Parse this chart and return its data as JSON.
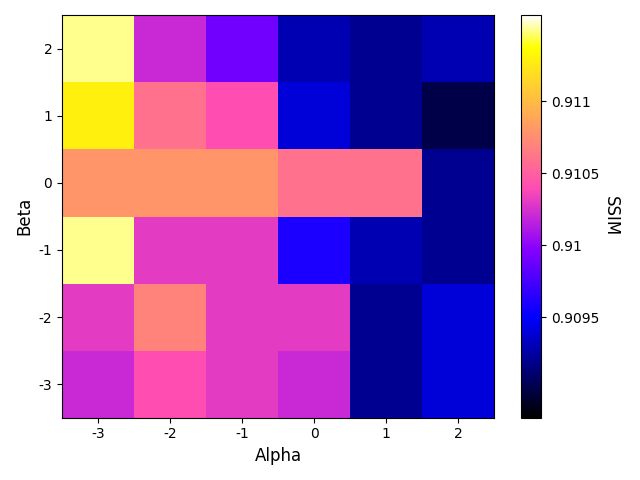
{
  "title": "",
  "xlabel": "Alpha",
  "ylabel": "Beta",
  "colorbar_label": "SSIM",
  "alpha_values": [
    -3,
    -2,
    -1,
    0,
    1,
    2
  ],
  "beta_values": [
    -3,
    -2,
    -1,
    0,
    1,
    2
  ],
  "data": [
    [
      0.9102,
      0.9104,
      0.9103,
      0.9102,
      0.9092,
      0.9094
    ],
    [
      0.9103,
      0.9107,
      0.9103,
      0.9103,
      0.9092,
      0.9094
    ],
    [
      0.9115,
      0.9103,
      0.9103,
      0.9096,
      0.9093,
      0.9092
    ],
    [
      0.9108,
      0.9108,
      0.9108,
      0.9106,
      0.9106,
      0.9092
    ],
    [
      0.9113,
      0.9106,
      0.9104,
      0.9094,
      0.9092,
      0.909
    ],
    [
      0.9115,
      0.9102,
      0.9099,
      0.9093,
      0.9092,
      0.9093
    ]
  ],
  "vmin": 0.9088,
  "vmax": 0.9116,
  "cmap": "gnuplot2",
  "figsize": [
    6.4,
    4.8
  ],
  "dpi": 100,
  "background_color": "#ffffff",
  "font_color": "#000000",
  "colorbar_ticks": [
    0.9095,
    0.91,
    0.9105,
    0.911
  ],
  "colorbar_ticklabels": [
    "0.9095",
    "0.91",
    "0.9105",
    "0.911"
  ],
  "tick_fontsize": 10,
  "label_fontsize": 12
}
